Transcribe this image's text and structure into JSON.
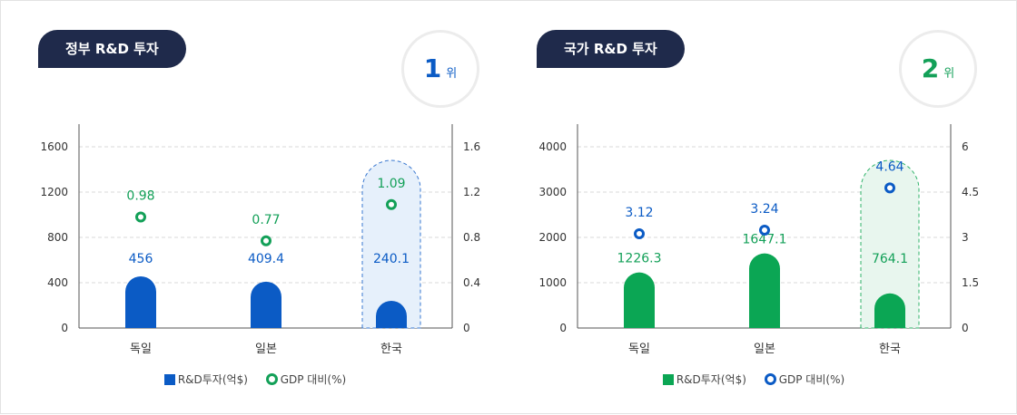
{
  "chart_data": [
    {
      "type": "bar",
      "tag": "정부 R&D 투자",
      "rank_number": "1",
      "rank_unit": "위",
      "categories": [
        "독일",
        "일본",
        "한국"
      ],
      "highlight_category": "한국",
      "series": [
        {
          "name": "R&D투자(억$)",
          "values": [
            456,
            409.4,
            240.1
          ],
          "axis": "left",
          "kind": "bar",
          "color": "#0b5bc5"
        },
        {
          "name": "GDP 대비(%)",
          "values": [
            0.98,
            0.77,
            1.09
          ],
          "axis": "right",
          "kind": "point",
          "color": "#13a058"
        }
      ],
      "left_axis": {
        "range": [
          0,
          1800
        ],
        "ticks": [
          "0",
          "400",
          "800",
          "1200",
          "1600"
        ]
      },
      "right_axis": {
        "range": [
          0,
          1.8
        ],
        "ticks": [
          "0",
          "0.4",
          "0.8",
          "1.2",
          "1.6"
        ]
      },
      "bar_label_color": "#0b5bc5",
      "point_label_color": "#13a058",
      "highlight_fill": "#e6f0fb",
      "highlight_stroke": "#3a78d0",
      "rank_color": "#0b5bc5",
      "grid": true,
      "legend_position": "bottom"
    },
    {
      "type": "bar",
      "tag": "국가 R&D 투자",
      "rank_number": "2",
      "rank_unit": "위",
      "categories": [
        "독일",
        "일본",
        "한국"
      ],
      "highlight_category": "한국",
      "series": [
        {
          "name": "R&D투자(억$)",
          "values": [
            1226.3,
            1647.1,
            764.1
          ],
          "axis": "left",
          "kind": "bar",
          "color": "#0ba654"
        },
        {
          "name": "GDP 대비(%)",
          "values": [
            3.12,
            3.24,
            4.64
          ],
          "axis": "right",
          "kind": "point",
          "color": "#0b5bc5"
        }
      ],
      "left_axis": {
        "range": [
          0,
          4500
        ],
        "ticks": [
          "0",
          "1000",
          "2000",
          "3000",
          "4000"
        ]
      },
      "right_axis": {
        "range": [
          0,
          6.75
        ],
        "ticks": [
          "0",
          "1.5",
          "3",
          "4.5",
          "6"
        ]
      },
      "bar_label_color": "#13a058",
      "point_label_color": "#0b5bc5",
      "highlight_fill": "#e8f6ee",
      "highlight_stroke": "#2fb36a",
      "rank_color": "#13a058",
      "grid": true,
      "legend_position": "bottom"
    }
  ]
}
